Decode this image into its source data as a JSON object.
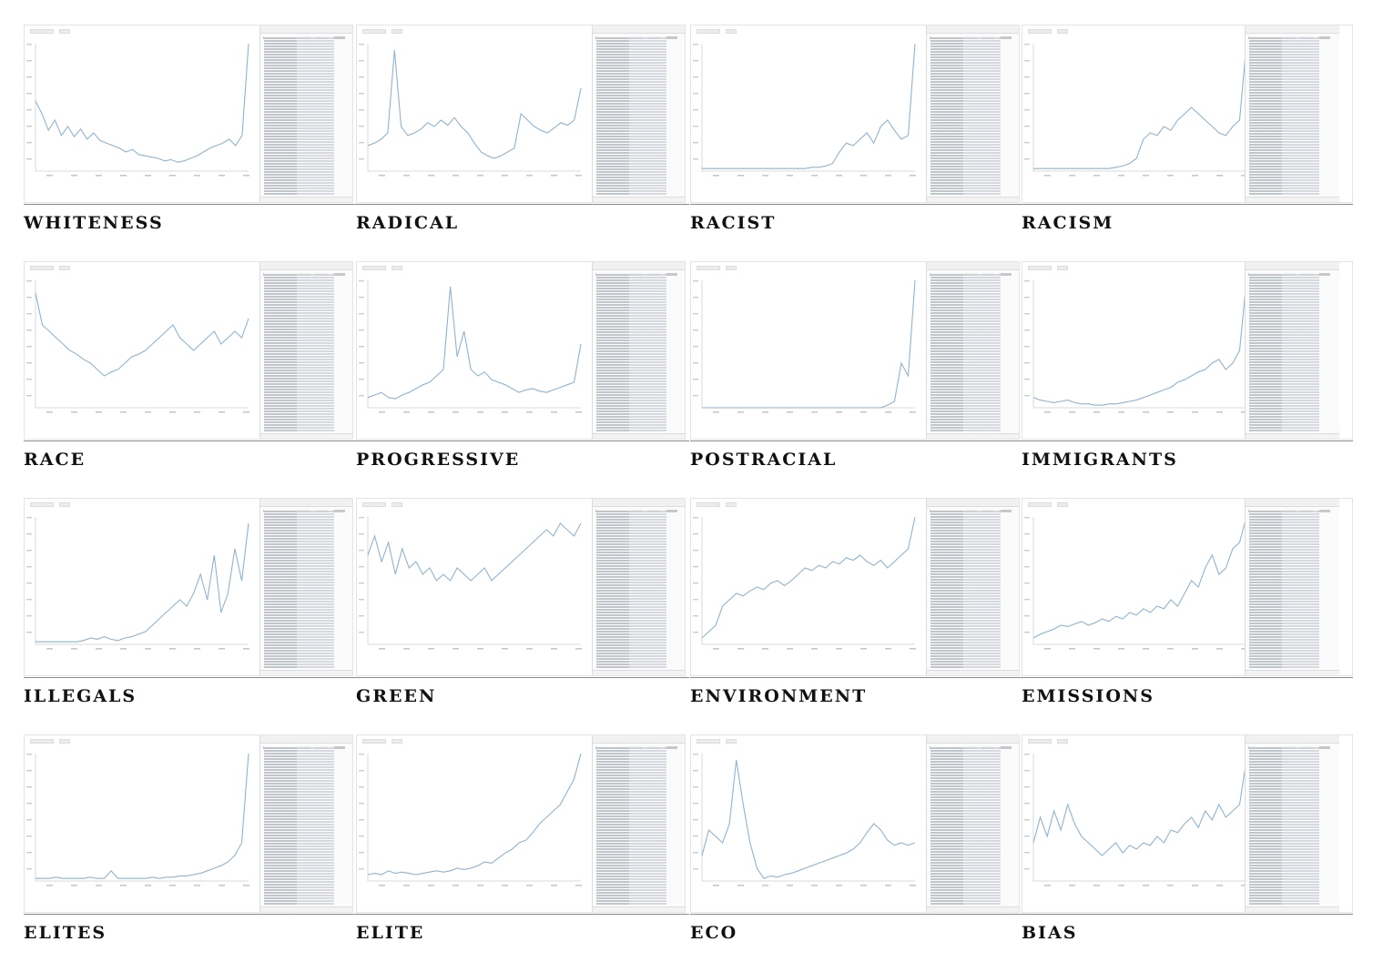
{
  "figure": {
    "panels": [
      {
        "label": "WHITENESS"
      },
      {
        "label": "RADICAL"
      },
      {
        "label": "RACIST"
      },
      {
        "label": "RACISM"
      },
      {
        "label": "RACE"
      },
      {
        "label": "PROGRESSIVE"
      },
      {
        "label": "POSTRACIAL"
      },
      {
        "label": "IMMIGRANTS"
      },
      {
        "label": "ILLEGALS"
      },
      {
        "label": "GREEN"
      },
      {
        "label": "ENVIRONMENT"
      },
      {
        "label": "EMISSIONS"
      },
      {
        "label": "ELITES"
      },
      {
        "label": "ELITE"
      },
      {
        "label": "ECO"
      },
      {
        "label": "BIAS"
      }
    ]
  },
  "chart_data": [
    {
      "type": "line",
      "title": "WHITENESS",
      "series": [
        {
          "values": [
            0.55,
            0.45,
            0.32,
            0.4,
            0.28,
            0.35,
            0.27,
            0.33,
            0.25,
            0.3,
            0.24,
            0.22,
            0.2,
            0.18,
            0.15,
            0.17,
            0.13,
            0.12,
            0.11,
            0.1,
            0.08,
            0.09,
            0.07,
            0.08,
            0.1,
            0.12,
            0.15,
            0.18,
            0.2,
            0.22,
            0.25,
            0.2,
            0.28,
            1.0
          ]
        }
      ]
    },
    {
      "type": "line",
      "title": "RADICAL",
      "series": [
        {
          "values": [
            0.2,
            0.22,
            0.25,
            0.3,
            0.95,
            0.35,
            0.28,
            0.3,
            0.33,
            0.38,
            0.35,
            0.4,
            0.36,
            0.42,
            0.35,
            0.3,
            0.22,
            0.15,
            0.12,
            0.1,
            0.12,
            0.15,
            0.18,
            0.45,
            0.4,
            0.35,
            0.32,
            0.3,
            0.34,
            0.38,
            0.36,
            0.4,
            0.65
          ]
        }
      ]
    },
    {
      "type": "line",
      "title": "RACIST",
      "series": [
        {
          "values": [
            0.02,
            0.02,
            0.02,
            0.02,
            0.02,
            0.02,
            0.02,
            0.02,
            0.02,
            0.02,
            0.02,
            0.02,
            0.02,
            0.02,
            0.02,
            0.02,
            0.03,
            0.03,
            0.04,
            0.06,
            0.15,
            0.22,
            0.2,
            0.25,
            0.3,
            0.22,
            0.35,
            0.4,
            0.32,
            0.25,
            0.28,
            1.0
          ]
        }
      ]
    },
    {
      "type": "line",
      "title": "RACISM",
      "series": [
        {
          "values": [
            0.02,
            0.02,
            0.02,
            0.02,
            0.02,
            0.02,
            0.02,
            0.02,
            0.02,
            0.02,
            0.02,
            0.02,
            0.03,
            0.04,
            0.06,
            0.1,
            0.25,
            0.3,
            0.28,
            0.35,
            0.32,
            0.4,
            0.45,
            0.5,
            0.45,
            0.4,
            0.35,
            0.3,
            0.28,
            0.35,
            0.4,
            1.0
          ]
        }
      ]
    },
    {
      "type": "line",
      "title": "RACE",
      "series": [
        {
          "values": [
            0.9,
            0.65,
            0.6,
            0.55,
            0.5,
            0.45,
            0.42,
            0.38,
            0.35,
            0.3,
            0.25,
            0.28,
            0.3,
            0.35,
            0.4,
            0.42,
            0.45,
            0.5,
            0.55,
            0.6,
            0.65,
            0.55,
            0.5,
            0.45,
            0.5,
            0.55,
            0.6,
            0.5,
            0.55,
            0.6,
            0.55,
            0.7
          ]
        }
      ]
    },
    {
      "type": "line",
      "title": "PROGRESSIVE",
      "series": [
        {
          "values": [
            0.08,
            0.1,
            0.12,
            0.08,
            0.07,
            0.1,
            0.12,
            0.15,
            0.18,
            0.2,
            0.25,
            0.3,
            0.95,
            0.4,
            0.6,
            0.3,
            0.25,
            0.28,
            0.22,
            0.2,
            0.18,
            0.15,
            0.12,
            0.14,
            0.15,
            0.13,
            0.12,
            0.14,
            0.16,
            0.18,
            0.2,
            0.5
          ]
        }
      ]
    },
    {
      "type": "line",
      "title": "POSTRACIAL",
      "series": [
        {
          "values": [
            0,
            0,
            0,
            0,
            0,
            0,
            0,
            0,
            0,
            0,
            0,
            0,
            0,
            0,
            0,
            0,
            0,
            0,
            0,
            0,
            0,
            0,
            0,
            0,
            0,
            0,
            0,
            0.02,
            0.05,
            0.35,
            0.25,
            1.0
          ]
        }
      ]
    },
    {
      "type": "line",
      "title": "IMMIGRANTS",
      "series": [
        {
          "values": [
            0.08,
            0.06,
            0.05,
            0.04,
            0.05,
            0.06,
            0.04,
            0.03,
            0.03,
            0.02,
            0.02,
            0.03,
            0.03,
            0.04,
            0.05,
            0.06,
            0.08,
            0.1,
            0.12,
            0.14,
            0.16,
            0.2,
            0.22,
            0.25,
            0.28,
            0.3,
            0.35,
            0.38,
            0.3,
            0.35,
            0.45,
            1.0
          ]
        }
      ]
    },
    {
      "type": "line",
      "title": "ILLEGALS",
      "series": [
        {
          "values": [
            0.02,
            0.02,
            0.02,
            0.02,
            0.02,
            0.02,
            0.02,
            0.03,
            0.05,
            0.04,
            0.06,
            0.04,
            0.03,
            0.05,
            0.06,
            0.08,
            0.1,
            0.15,
            0.2,
            0.25,
            0.3,
            0.35,
            0.3,
            0.4,
            0.55,
            0.35,
            0.7,
            0.25,
            0.4,
            0.75,
            0.5,
            0.95
          ]
        }
      ]
    },
    {
      "type": "line",
      "title": "GREEN",
      "series": [
        {
          "values": [
            0.7,
            0.85,
            0.65,
            0.8,
            0.55,
            0.75,
            0.6,
            0.65,
            0.55,
            0.6,
            0.5,
            0.55,
            0.5,
            0.6,
            0.55,
            0.5,
            0.55,
            0.6,
            0.5,
            0.55,
            0.6,
            0.65,
            0.7,
            0.75,
            0.8,
            0.85,
            0.9,
            0.85,
            0.95,
            0.9,
            0.85,
            0.95
          ]
        }
      ]
    },
    {
      "type": "line",
      "title": "ENVIRONMENT",
      "series": [
        {
          "values": [
            0.05,
            0.1,
            0.15,
            0.3,
            0.35,
            0.4,
            0.38,
            0.42,
            0.45,
            0.43,
            0.48,
            0.5,
            0.46,
            0.5,
            0.55,
            0.6,
            0.58,
            0.62,
            0.6,
            0.65,
            0.63,
            0.68,
            0.66,
            0.7,
            0.65,
            0.62,
            0.66,
            0.6,
            0.65,
            0.7,
            0.75,
            1.0
          ]
        }
      ]
    },
    {
      "type": "line",
      "title": "EMISSIONS",
      "series": [
        {
          "values": [
            0.05,
            0.08,
            0.1,
            0.12,
            0.15,
            0.14,
            0.16,
            0.18,
            0.15,
            0.17,
            0.2,
            0.18,
            0.22,
            0.2,
            0.25,
            0.23,
            0.28,
            0.25,
            0.3,
            0.28,
            0.35,
            0.3,
            0.4,
            0.5,
            0.45,
            0.6,
            0.7,
            0.55,
            0.6,
            0.75,
            0.8,
            1.0
          ]
        }
      ]
    },
    {
      "type": "line",
      "title": "ELITES",
      "series": [
        {
          "values": [
            0.02,
            0.02,
            0.02,
            0.03,
            0.02,
            0.02,
            0.02,
            0.02,
            0.03,
            0.02,
            0.02,
            0.08,
            0.02,
            0.02,
            0.02,
            0.02,
            0.02,
            0.03,
            0.02,
            0.03,
            0.03,
            0.04,
            0.04,
            0.05,
            0.06,
            0.08,
            0.1,
            0.12,
            0.15,
            0.2,
            0.3,
            1.0
          ]
        }
      ]
    },
    {
      "type": "line",
      "title": "ELITE",
      "series": [
        {
          "values": [
            0.05,
            0.06,
            0.05,
            0.08,
            0.06,
            0.07,
            0.06,
            0.05,
            0.06,
            0.07,
            0.08,
            0.07,
            0.08,
            0.1,
            0.09,
            0.1,
            0.12,
            0.15,
            0.14,
            0.18,
            0.22,
            0.25,
            0.3,
            0.32,
            0.38,
            0.45,
            0.5,
            0.55,
            0.6,
            0.7,
            0.8,
            1.0
          ]
        }
      ]
    },
    {
      "type": "line",
      "title": "ECO",
      "series": [
        {
          "values": [
            0.2,
            0.4,
            0.35,
            0.3,
            0.45,
            0.95,
            0.6,
            0.3,
            0.1,
            0.02,
            0.04,
            0.03,
            0.05,
            0.06,
            0.08,
            0.1,
            0.12,
            0.14,
            0.16,
            0.18,
            0.2,
            0.22,
            0.25,
            0.3,
            0.38,
            0.45,
            0.4,
            0.32,
            0.28,
            0.3,
            0.28,
            0.3
          ]
        }
      ]
    },
    {
      "type": "line",
      "title": "BIAS",
      "series": [
        {
          "values": [
            0.3,
            0.5,
            0.35,
            0.55,
            0.4,
            0.6,
            0.45,
            0.35,
            0.3,
            0.25,
            0.2,
            0.25,
            0.3,
            0.22,
            0.28,
            0.25,
            0.3,
            0.28,
            0.35,
            0.3,
            0.4,
            0.38,
            0.45,
            0.5,
            0.42,
            0.55,
            0.48,
            0.6,
            0.5,
            0.55,
            0.6,
            0.95
          ]
        }
      ]
    }
  ]
}
